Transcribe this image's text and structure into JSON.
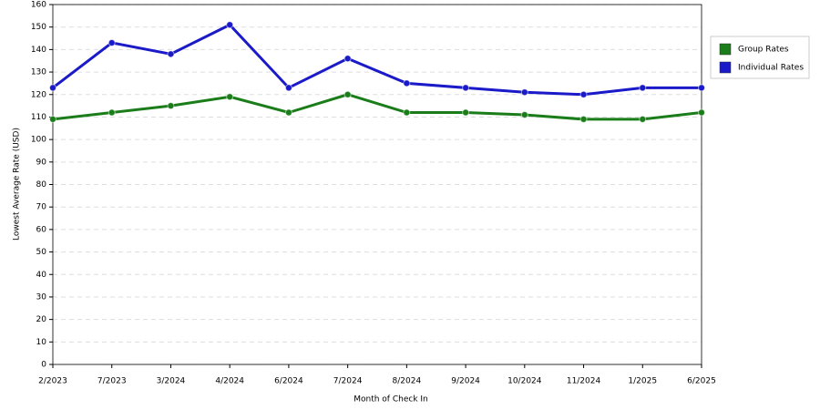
{
  "chart_data": {
    "type": "line",
    "x_label": "Month of Check In",
    "y_label": "Lowest Average Rate (USD)",
    "categories": [
      "2/2023",
      "7/2023",
      "3/2024",
      "4/2024",
      "6/2024",
      "7/2024",
      "8/2024",
      "9/2024",
      "10/2024",
      "11/2024",
      "1/2025",
      "6/2025"
    ],
    "series": [
      {
        "name": "Group Rates",
        "color": "#1a7d1a",
        "values": [
          109,
          112,
          115,
          119,
          112,
          120,
          112,
          112,
          111,
          109,
          109,
          112
        ]
      },
      {
        "name": "Individual Rates",
        "color": "#1a1ac8",
        "values": [
          123,
          143,
          138,
          151,
          123,
          136,
          125,
          123,
          121,
          120,
          123,
          123
        ]
      }
    ],
    "ylim": [
      0,
      160
    ],
    "yticks": [
      0,
      10,
      20,
      30,
      40,
      50,
      60,
      70,
      80,
      90,
      100,
      110,
      120,
      130,
      140,
      150,
      160
    ],
    "grid": true
  }
}
